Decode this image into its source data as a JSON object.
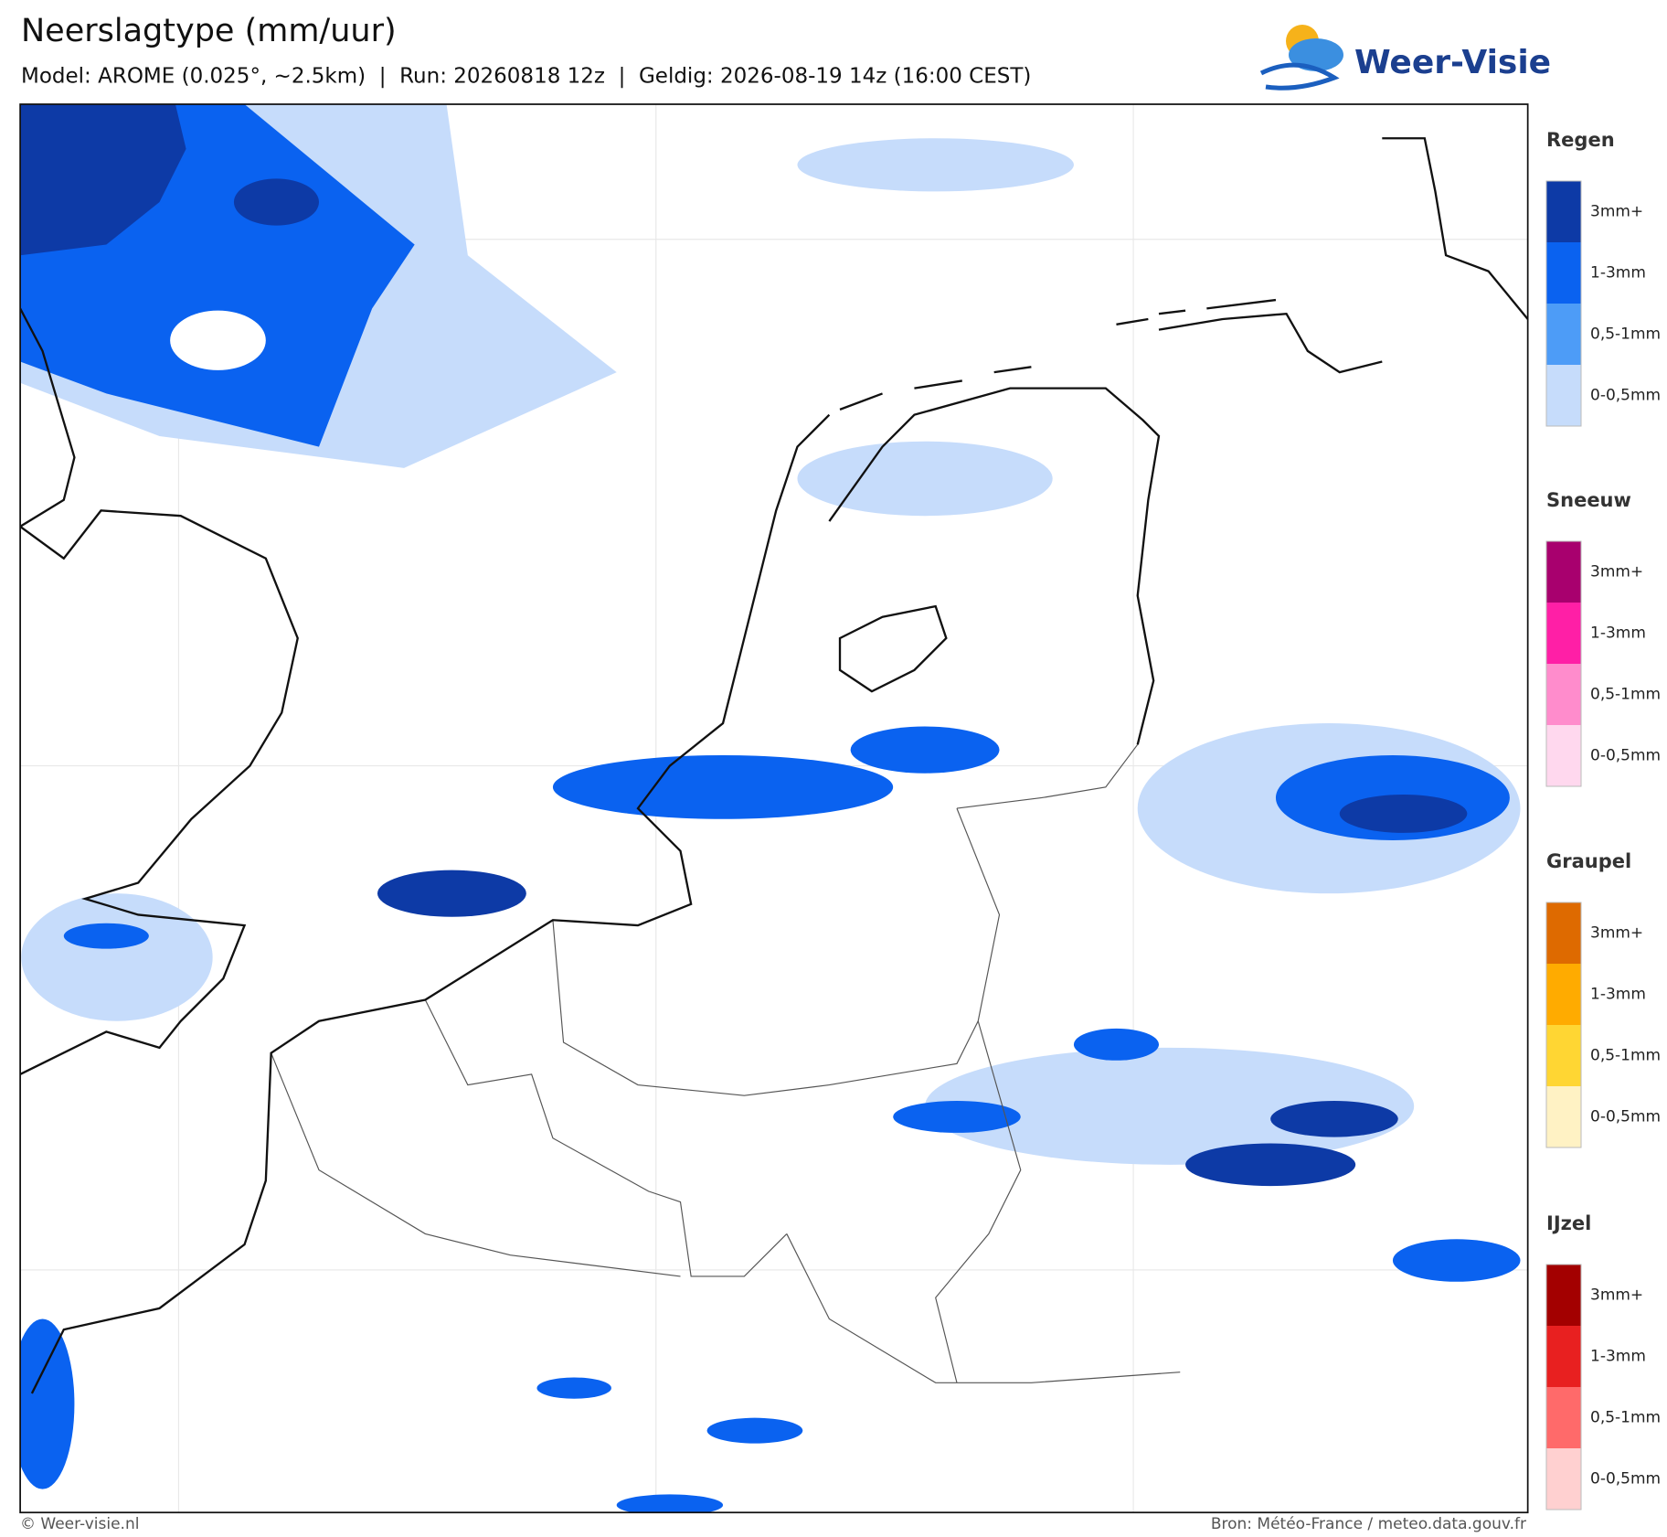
{
  "header": {
    "title": "Neerslagtype (mm/uur)",
    "subtitle": "Model: AROME (0.025°, ~2.5km)  |  Run: 20260818 12z  |  Geldig: 2026-08-19 14z (16:00 CEST)"
  },
  "logo": {
    "text": "Weer-Visie"
  },
  "legend": [
    {
      "title": "Regen",
      "levels": [
        {
          "label": "3mm+",
          "color": "#0d3aa6"
        },
        {
          "label": "1-3mm",
          "color": "#0a62f0"
        },
        {
          "label": "0,5-1mm",
          "color": "#4d9cf7"
        },
        {
          "label": "0-0,5mm",
          "color": "#c6dcfb"
        }
      ]
    },
    {
      "title": "Sneeuw",
      "levels": [
        {
          "label": "3mm+",
          "color": "#a8006e"
        },
        {
          "label": "1-3mm",
          "color": "#ff1fa6"
        },
        {
          "label": "0,5-1mm",
          "color": "#ff8ccc"
        },
        {
          "label": "0-0,5mm",
          "color": "#ffd8ee"
        }
      ]
    },
    {
      "title": "Graupel",
      "levels": [
        {
          "label": "3mm+",
          "color": "#de6a00"
        },
        {
          "label": "1-3mm",
          "color": "#ffab00"
        },
        {
          "label": "0,5-1mm",
          "color": "#ffd633"
        },
        {
          "label": "0-0,5mm",
          "color": "#fff2c4"
        }
      ]
    },
    {
      "title": "IJzel",
      "levels": [
        {
          "label": "3mm+",
          "color": "#a30000"
        },
        {
          "label": "1-3mm",
          "color": "#e82020"
        },
        {
          "label": "0,5-1mm",
          "color": "#ff6a6a"
        },
        {
          "label": "0-0,5mm",
          "color": "#ffd0d0"
        }
      ]
    }
  ],
  "footer": {
    "left": "© Weer-visie.nl",
    "right": "Bron: Météo-France / meteo.data.gouv.fr"
  }
}
